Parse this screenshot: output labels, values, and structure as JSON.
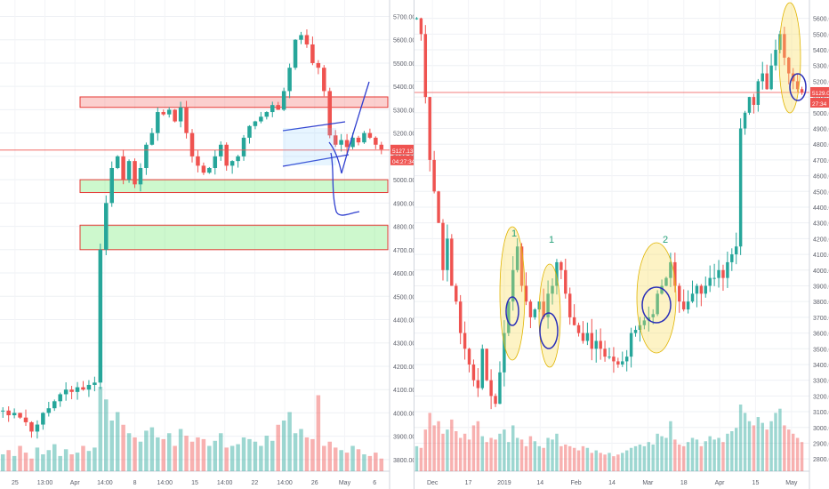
{
  "chart_data": [
    {
      "type": "candlestick",
      "timeframe": "intraday",
      "ylim": [
        3750,
        5740
      ],
      "y_ticks": [
        3800,
        3900,
        4000,
        4100,
        4200,
        4300,
        4400,
        4500,
        4600,
        4700,
        4800,
        4900,
        5000,
        5100,
        5200,
        5300,
        5400,
        5500,
        5600,
        5700
      ],
      "x_ticks": [
        "25",
        "13:00",
        "Apr",
        "14:00",
        "8",
        "14:00",
        "15",
        "14:00",
        "22",
        "14:00",
        "26",
        "May",
        "6"
      ],
      "price_label": "5127.13",
      "countdown_label": "04:27:34",
      "current_price": 5127,
      "zones": [
        {
          "kind": "resistance",
          "y_range": [
            5310,
            5355
          ]
        },
        {
          "kind": "support",
          "y_range": [
            4945,
            5000
          ]
        },
        {
          "kind": "support",
          "y_range": [
            4700,
            4805
          ]
        }
      ],
      "close_path": [
        4010,
        3990,
        4000,
        3980,
        3960,
        3920,
        3950,
        4000,
        4020,
        4050,
        4080,
        4100,
        4090,
        4110,
        4100,
        4120,
        4130,
        4700,
        4900,
        5050,
        5100,
        5000,
        5080,
        4980,
        5050,
        5150,
        5200,
        5290,
        5280,
        5300,
        5250,
        5310,
        5200,
        5100,
        5060,
        5030,
        5050,
        5100,
        5150,
        5060,
        5080,
        5100,
        5180,
        5230,
        5250,
        5270,
        5290,
        5320,
        5300,
        5380,
        5480,
        5600,
        5620,
        5580,
        5500,
        5480,
        5380,
        5190,
        5150,
        5170,
        5140,
        5180,
        5160,
        5200,
        5180,
        5150,
        5130
      ],
      "volume": [
        20,
        25,
        18,
        30,
        22,
        15,
        28,
        20,
        25,
        32,
        18,
        26,
        20,
        22,
        30,
        24,
        28,
        100,
        85,
        60,
        70,
        55,
        45,
        40,
        35,
        48,
        52,
        40,
        38,
        45,
        30,
        50,
        42,
        35,
        40,
        38,
        30,
        36,
        45,
        28,
        30,
        32,
        40,
        38,
        35,
        30,
        42,
        36,
        55,
        60,
        70,
        45,
        50,
        40,
        38,
        90,
        30,
        35,
        28,
        25,
        22,
        30,
        26,
        20,
        18,
        22,
        15
      ]
    },
    {
      "type": "candlestick",
      "timeframe": "daily",
      "ylim": [
        2750,
        5660
      ],
      "y_ticks": [
        2800,
        2900,
        3000,
        3100,
        3200,
        3300,
        3400,
        3500,
        3600,
        3700,
        3800,
        3900,
        4000,
        4100,
        4200,
        4300,
        4400,
        4500,
        4600,
        4700,
        4800,
        4900,
        5000,
        5100,
        5200,
        5300,
        5400,
        5500,
        5600
      ],
      "x_ticks": [
        "Dec",
        "17",
        "2019",
        "14",
        "Feb",
        "14",
        "Mar",
        "18",
        "Apr",
        "15",
        "May"
      ],
      "price_label": "5129.0",
      "countdown_label": "27:34",
      "current_price": 5129,
      "annotations": [
        "1",
        "1",
        "2"
      ],
      "close_path": [
        5600,
        5500,
        5100,
        4700,
        4500,
        4300,
        4000,
        4200,
        3900,
        3800,
        3600,
        3500,
        3400,
        3300,
        3250,
        3500,
        3300,
        3200,
        3150,
        3350,
        3600,
        3800,
        4000,
        4150,
        3900,
        3800,
        3700,
        3750,
        3800,
        3700,
        3850,
        3900,
        4050,
        4000,
        3850,
        3700,
        3650,
        3600,
        3550,
        3600,
        3500,
        3550,
        3500,
        3450,
        3450,
        3420,
        3400,
        3420,
        3450,
        3600,
        3620,
        3650,
        3680,
        3700,
        3720,
        3850,
        3900,
        3950,
        4050,
        3900,
        3800,
        3750,
        3800,
        3850,
        3900,
        3850,
        3900,
        3950,
        3950,
        4000,
        3950,
        4050,
        4100,
        4150,
        4900,
        5000,
        5100,
        5050,
        5200,
        5250,
        5150,
        5300,
        5400,
        5500,
        5350,
        5250,
        5200,
        5150,
        5130
      ],
      "volume": [
        30,
        28,
        50,
        70,
        55,
        60,
        45,
        50,
        62,
        48,
        40,
        45,
        38,
        55,
        60,
        42,
        35,
        40,
        38,
        45,
        50,
        35,
        55,
        40,
        38,
        30,
        42,
        36,
        30,
        28,
        40,
        38,
        45,
        30,
        32,
        30,
        28,
        25,
        30,
        28,
        22,
        25,
        22,
        20,
        22,
        18,
        20,
        22,
        25,
        28,
        30,
        32,
        30,
        35,
        32,
        45,
        42,
        40,
        60,
        38,
        32,
        30,
        35,
        40,
        38,
        30,
        36,
        42,
        38,
        40,
        35,
        45,
        48,
        52,
        80,
        70,
        60,
        55,
        65,
        58,
        50,
        60,
        70,
        75,
        55,
        50,
        45,
        40,
        35
      ]
    }
  ]
}
